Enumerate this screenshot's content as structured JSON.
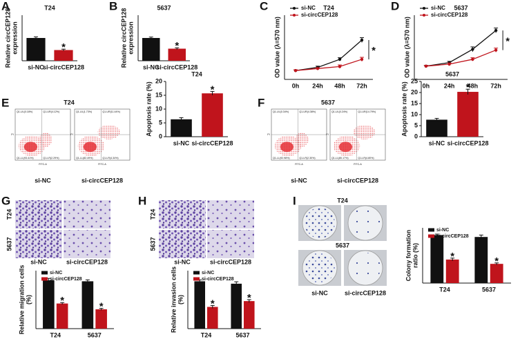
{
  "chart_data": [
    {
      "panel": "A",
      "type": "bar",
      "title": "T24",
      "ylabel": [
        "Relative circCEP128",
        "expression"
      ],
      "categories": [
        "si-NC",
        "si-circCEP128"
      ],
      "values": [
        1.0,
        0.47
      ],
      "errors": [
        0.05,
        0.04
      ],
      "colors": [
        "#111111",
        "#c0141c"
      ],
      "ylim": [
        0,
        2
      ],
      "annotations": [
        {
          "text": "*",
          "category": "si-circCEP128"
        }
      ]
    },
    {
      "panel": "B",
      "type": "bar",
      "title": "5637",
      "ylabel": [
        "Relative circCEP128",
        "expression"
      ],
      "categories": [
        "si-NC",
        "si-circCEP128"
      ],
      "values": [
        1.0,
        0.53
      ],
      "errors": [
        0.04,
        0.04
      ],
      "colors": [
        "#111111",
        "#c0141c"
      ],
      "ylim": [
        0,
        2
      ],
      "annotations": [
        {
          "text": "*",
          "category": "si-circCEP128"
        }
      ]
    },
    {
      "panel": "C",
      "type": "line",
      "title": "T24",
      "ylabel": [
        "OD value (λ=570 nm)"
      ],
      "x": [
        "0h",
        "24h",
        "48h",
        "72h"
      ],
      "ylim": [
        0,
        1.6
      ],
      "legend": "upper left",
      "series": [
        {
          "name": "si-NC",
          "color": "#111111",
          "values": [
            0.22,
            0.3,
            0.5,
            0.98
          ],
          "errors": [
            0.02,
            0.03,
            0.04,
            0.06
          ]
        },
        {
          "name": "si-circCEP128",
          "color": "#c0141c",
          "values": [
            0.22,
            0.27,
            0.32,
            0.5
          ],
          "errors": [
            0.02,
            0.02,
            0.04,
            0.05
          ]
        }
      ],
      "annotations": [
        {
          "text": "*",
          "x": "72h"
        }
      ]
    },
    {
      "panel": "D",
      "type": "line",
      "title": "5637",
      "ylabel": [
        "OD value (λ=570 nm)"
      ],
      "x": [
        "0h",
        "24h",
        "48h",
        "72h"
      ],
      "ylim": [
        0,
        1.6
      ],
      "legend": "upper left",
      "series": [
        {
          "name": "si-NC",
          "color": "#111111",
          "values": [
            0.33,
            0.42,
            0.75,
            1.22
          ],
          "errors": [
            0.02,
            0.03,
            0.06,
            0.06
          ]
        },
        {
          "name": "si-circCEP128",
          "color": "#c0141c",
          "values": [
            0.33,
            0.38,
            0.5,
            0.73
          ],
          "errors": [
            0.02,
            0.03,
            0.04,
            0.05
          ]
        }
      ],
      "annotations": [
        {
          "text": "*",
          "x": "72h"
        }
      ]
    },
    {
      "type": "bar",
      "title": "T24",
      "ylabel": [
        "Apoptosis rate (%)"
      ],
      "categories": [
        "si-NC",
        "si-circCEP128"
      ],
      "values": [
        6.3,
        15.7
      ],
      "errors": [
        0.6,
        0.7
      ],
      "colors": [
        "#111111",
        "#c0141c"
      ],
      "ylim": [
        0,
        20
      ],
      "yticks": [
        0,
        5,
        10,
        15,
        20
      ],
      "annotations": [
        {
          "text": "*",
          "category": "si-circCEP128"
        }
      ]
    },
    {
      "type": "bar",
      "title": "5637",
      "ylabel": [
        "Apoptosis rate (%)"
      ],
      "categories": [
        "si-NC",
        "si-circCEP128"
      ],
      "values": [
        7.7,
        20.3
      ],
      "errors": [
        0.6,
        1.2
      ],
      "colors": [
        "#111111",
        "#c0141c"
      ],
      "ylim": [
        0,
        25
      ],
      "yticks": [
        0,
        5,
        10,
        15,
        20,
        25
      ],
      "annotations": [
        {
          "text": "*",
          "category": "si-circCEP128"
        }
      ]
    },
    {
      "type": "bar",
      "ylabel": [
        "Relative migration cells",
        "(%)"
      ],
      "categories": [
        "T24",
        "5637"
      ],
      "ylim": [
        0,
        120
      ],
      "legend": "upper left",
      "series": [
        {
          "name": "si-NC",
          "color": "#111111",
          "values": [
            100,
            98
          ],
          "errors": [
            4,
            3
          ]
        },
        {
          "name": "si-circCEP128",
          "color": "#c0141c",
          "values": [
            52,
            40
          ],
          "errors": [
            2,
            2
          ]
        }
      ],
      "annotations": [
        {
          "text": "*",
          "category": "T24",
          "series": "si-circCEP128"
        },
        {
          "text": "*",
          "category": "5637",
          "series": "si-circCEP128"
        }
      ]
    },
    {
      "type": "bar",
      "ylabel": [
        "Relative invasion cells",
        "(%)"
      ],
      "categories": [
        "T24",
        "5637"
      ],
      "ylim": [
        0,
        120
      ],
      "legend": "upper left",
      "series": [
        {
          "name": "si-NC",
          "color": "#111111",
          "values": [
            98,
            93
          ],
          "errors": [
            3,
            4
          ]
        },
        {
          "name": "si-circCEP128",
          "color": "#c0141c",
          "values": [
            45,
            57
          ],
          "errors": [
            3,
            3
          ]
        }
      ],
      "annotations": [
        {
          "text": "*",
          "category": "T24",
          "series": "si-circCEP128"
        },
        {
          "text": "*",
          "category": "5637",
          "series": "si-circCEP128"
        }
      ]
    },
    {
      "type": "bar",
      "ylabel": [
        "Colony formation",
        "ratio (%)"
      ],
      "categories": [
        "T24",
        "5637"
      ],
      "ylim": [
        0,
        115
      ],
      "legend": "upper left",
      "series": [
        {
          "name": "si-NC",
          "color": "#111111",
          "values": [
            100,
            96
          ],
          "errors": [
            2,
            4
          ]
        },
        {
          "name": "si-circCEP128",
          "color": "#c0141c",
          "values": [
            49,
            40
          ],
          "errors": [
            3,
            2
          ]
        }
      ],
      "annotations": [
        {
          "text": "*",
          "category": "T24",
          "series": "si-circCEP128"
        },
        {
          "text": "*",
          "category": "5637",
          "series": "si-circCEP128"
        }
      ]
    }
  ],
  "image_panels": [
    {
      "panel": "E",
      "kind": "flow",
      "title": "T24",
      "columns": [
        "si-NC",
        "si-circCEP128"
      ],
      "x_label": "FITC-A",
      "y_label": "PI",
      "quadrants": [
        [
          "Q1-UL(0.18%)",
          "Q1-UR(4.12%)",
          "Q1-LL(93.41%)",
          "Q1-LR(2.29%)"
        ],
        [
          "Q1-UL(1.73%)",
          "Q1-UR(11.44%)",
          "Q1-LL(82.49%)",
          "Q1-LR(4.34%)"
        ]
      ]
    },
    {
      "panel": "F",
      "kind": "flow",
      "title": "5637",
      "columns": [
        "si-NC",
        "si-circCEP128"
      ],
      "x_label": "FITC-A",
      "y_label": "PI",
      "quadrants": [
        [
          "Q1-UL(0.34%)",
          "Q1-UR(4.38%)",
          "Q1-LL(92.98%)",
          "Q1-LR(2.30%)"
        ],
        [
          "Q1-UL(0.24%)",
          "Q1-UR(14.79%)",
          "Q1-LL(80.17%)",
          "Q1-LR(4.80%)"
        ]
      ]
    },
    {
      "panel": "G",
      "kind": "cells",
      "rows": [
        "T24",
        "5637"
      ],
      "columns": [
        "si-NC",
        "si-circCEP128"
      ]
    },
    {
      "panel": "H",
      "kind": "cells",
      "rows": [
        "T24",
        "5637"
      ],
      "columns": [
        "si-NC",
        "si-circCEP128"
      ]
    },
    {
      "panel": "I",
      "kind": "plates",
      "rows": [
        "T24",
        "5637"
      ],
      "columns": [
        "si-NC",
        "si-circCEP128"
      ]
    }
  ]
}
